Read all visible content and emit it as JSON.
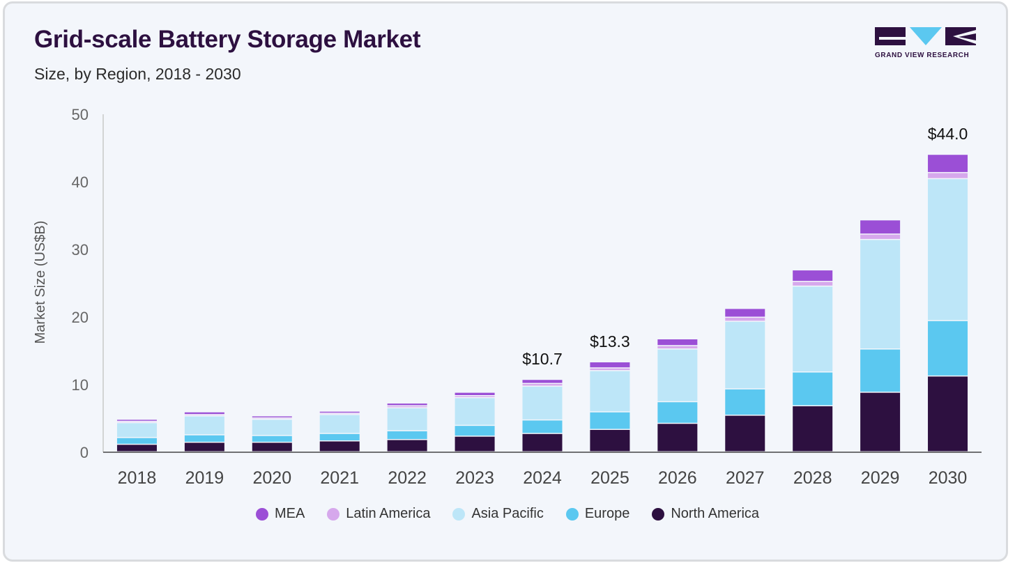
{
  "header": {
    "title": "Grid-scale Battery Storage Market",
    "subtitle": "Size, by Region, 2018 - 2030"
  },
  "logo": {
    "text": "GRAND VIEW RESEARCH"
  },
  "chart_data": {
    "type": "bar",
    "stacked": true,
    "title": "Grid-scale Battery Storage Market",
    "subtitle": "Size, by Region, 2018 - 2030",
    "xlabel": "",
    "ylabel": "Market Size (US$B)",
    "ylim": [
      0,
      50
    ],
    "yticks": [
      0,
      10,
      20,
      30,
      40,
      50
    ],
    "grid": false,
    "legend_position": "bottom",
    "categories": [
      "2018",
      "2019",
      "2020",
      "2021",
      "2022",
      "2023",
      "2024",
      "2025",
      "2026",
      "2027",
      "2028",
      "2029",
      "2030"
    ],
    "series": [
      {
        "name": "North America",
        "color": "#2d1040",
        "values": [
          1.1,
          1.4,
          1.4,
          1.6,
          1.8,
          2.3,
          2.7,
          3.3,
          4.2,
          5.4,
          6.8,
          8.8,
          11.2
        ]
      },
      {
        "name": "Europe",
        "color": "#5bc8f0",
        "values": [
          1.0,
          1.1,
          1.0,
          1.1,
          1.3,
          1.6,
          2.0,
          2.6,
          3.2,
          3.9,
          5.0,
          6.4,
          8.2
        ]
      },
      {
        "name": "Asia Pacific",
        "color": "#bde6f8",
        "values": [
          2.2,
          2.8,
          2.4,
          2.8,
          3.4,
          4.1,
          5.0,
          6.1,
          7.8,
          10.0,
          12.7,
          16.2,
          21.0
        ]
      },
      {
        "name": "Latin America",
        "color": "#d6a8ec",
        "values": [
          0.2,
          0.2,
          0.2,
          0.2,
          0.3,
          0.3,
          0.4,
          0.4,
          0.5,
          0.6,
          0.7,
          0.8,
          0.9
        ]
      },
      {
        "name": "MEA",
        "color": "#9b4fd6",
        "values": [
          0.3,
          0.4,
          0.3,
          0.3,
          0.4,
          0.5,
          0.6,
          0.9,
          1.0,
          1.3,
          1.7,
          2.1,
          2.7
        ]
      }
    ],
    "annotations": [
      {
        "category": "2024",
        "label": "$10.7"
      },
      {
        "category": "2025",
        "label": "$13.3"
      },
      {
        "category": "2030",
        "label": "$44.0"
      }
    ]
  },
  "legend": [
    {
      "name": "MEA",
      "color": "#9b4fd6"
    },
    {
      "name": "Latin America",
      "color": "#d6a8ec"
    },
    {
      "name": "Asia Pacific",
      "color": "#bde6f8"
    },
    {
      "name": "Europe",
      "color": "#5bc8f0"
    },
    {
      "name": "North America",
      "color": "#2d1040"
    }
  ]
}
